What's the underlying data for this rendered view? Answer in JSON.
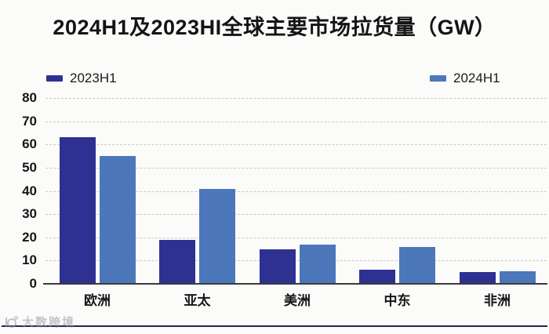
{
  "title": "2024H1及2023HI全球主要市场拉货量（GW）",
  "legend": {
    "items": [
      {
        "label": "2023H1",
        "color": "#2e3192"
      },
      {
        "label": "2024H1",
        "color": "#4d77bb"
      }
    ]
  },
  "watermark": {
    "text": "大数跨境"
  },
  "colors": {
    "series_2023": "#2e3192",
    "series_2024": "#4d77bb",
    "gridline": "#c9c9c9",
    "axis": "#3a3a3a",
    "bottom_rule": "#26264f",
    "background": "#fbfbf9"
  },
  "chart_data": {
    "type": "bar",
    "title": "2024H1及2023HI全球主要市场拉货量（GW）",
    "categories": [
      "欧洲",
      "亚太",
      "美洲",
      "中东",
      "非洲"
    ],
    "series": [
      {
        "name": "2023H1",
        "color": "#2e3192",
        "values": [
          63,
          19,
          15,
          6,
          5
        ]
      },
      {
        "name": "2024H1",
        "color": "#4d77bb",
        "values": [
          55,
          41,
          17,
          16,
          5.5
        ]
      }
    ],
    "xlabel": "",
    "ylabel": "",
    "ylim": [
      0,
      80
    ],
    "yticks": [
      0,
      10,
      20,
      30,
      40,
      50,
      60,
      70,
      80
    ],
    "grid": "horizontal-dashed",
    "legend_position": "top"
  }
}
